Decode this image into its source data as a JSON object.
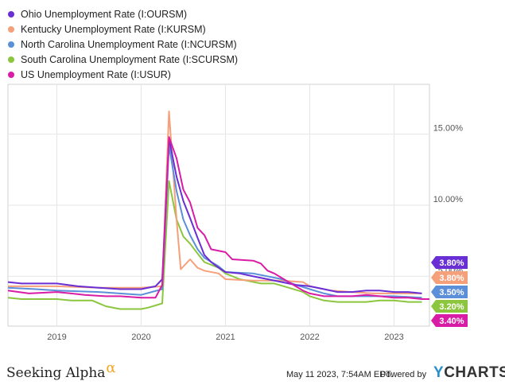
{
  "chart_data": {
    "type": "line",
    "y_axis": {
      "min": 1.5,
      "max": 18.5,
      "ticks": [
        5,
        10,
        15
      ],
      "tick_labels": [
        "5.00%",
        "10.00%",
        "15.00%"
      ],
      "side": "right"
    },
    "x_axis": {
      "start": 2018.42,
      "end": 2023.42,
      "ticks": [
        2019,
        2020,
        2021,
        2022,
        2023
      ],
      "tick_labels": [
        "2019",
        "2020",
        "2021",
        "2022",
        "2023"
      ]
    },
    "grid": true,
    "legend_position": "top-left",
    "series": [
      {
        "name": "Ohio Unemployment Rate (I:OURSM)",
        "color": "#6a2fd4",
        "end_label": "3.80%",
        "points": [
          [
            2018.42,
            4.6
          ],
          [
            2018.58,
            4.5
          ],
          [
            2018.75,
            4.5
          ],
          [
            2019.0,
            4.5
          ],
          [
            2019.25,
            4.3
          ],
          [
            2019.5,
            4.2
          ],
          [
            2019.75,
            4.1
          ],
          [
            2020.0,
            4.1
          ],
          [
            2020.17,
            4.3
          ],
          [
            2020.25,
            4.8
          ],
          [
            2020.33,
            14.7
          ],
          [
            2020.42,
            12.0
          ],
          [
            2020.5,
            10.3
          ],
          [
            2020.58,
            9.1
          ],
          [
            2020.67,
            7.7
          ],
          [
            2020.75,
            6.5
          ],
          [
            2020.83,
            6.0
          ],
          [
            2020.92,
            5.6
          ],
          [
            2021.0,
            5.3
          ],
          [
            2021.17,
            5.2
          ],
          [
            2021.33,
            5.0
          ],
          [
            2021.5,
            4.8
          ],
          [
            2021.67,
            4.6
          ],
          [
            2021.83,
            4.4
          ],
          [
            2022.0,
            4.3
          ],
          [
            2022.17,
            4.1
          ],
          [
            2022.33,
            3.9
          ],
          [
            2022.5,
            3.9
          ],
          [
            2022.67,
            4.0
          ],
          [
            2022.83,
            4.0
          ],
          [
            2023.0,
            3.9
          ],
          [
            2023.17,
            3.9
          ],
          [
            2023.33,
            3.8
          ]
        ]
      },
      {
        "name": "Kentucky Unemployment Rate (I:KURSM)",
        "color": "#f5a07a",
        "end_label": "3.80%",
        "points": [
          [
            2018.42,
            4.3
          ],
          [
            2018.75,
            4.3
          ],
          [
            2019.0,
            4.3
          ],
          [
            2019.5,
            4.2
          ],
          [
            2020.0,
            4.2
          ],
          [
            2020.25,
            4.3
          ],
          [
            2020.33,
            16.6
          ],
          [
            2020.42,
            9.0
          ],
          [
            2020.47,
            5.5
          ],
          [
            2020.58,
            6.2
          ],
          [
            2020.67,
            5.6
          ],
          [
            2020.75,
            5.4
          ],
          [
            2020.92,
            5.2
          ],
          [
            2021.0,
            4.8
          ],
          [
            2021.33,
            4.7
          ],
          [
            2021.67,
            4.7
          ],
          [
            2021.92,
            4.6
          ],
          [
            2022.0,
            4.3
          ],
          [
            2022.25,
            4.0
          ],
          [
            2022.5,
            3.9
          ],
          [
            2022.75,
            3.8
          ],
          [
            2023.0,
            3.8
          ],
          [
            2023.33,
            3.8
          ]
        ]
      },
      {
        "name": "North Carolina Unemployment Rate (I:NCURSM)",
        "color": "#5b8fd9",
        "end_label": "3.50%",
        "points": [
          [
            2018.42,
            4.2
          ],
          [
            2018.75,
            4.1
          ],
          [
            2019.0,
            4.0
          ],
          [
            2019.5,
            3.9
          ],
          [
            2020.0,
            3.7
          ],
          [
            2020.25,
            4.1
          ],
          [
            2020.33,
            14.2
          ],
          [
            2020.42,
            11.0
          ],
          [
            2020.5,
            9.0
          ],
          [
            2020.58,
            7.9
          ],
          [
            2020.67,
            6.9
          ],
          [
            2020.75,
            6.3
          ],
          [
            2020.92,
            5.7
          ],
          [
            2021.0,
            5.3
          ],
          [
            2021.33,
            5.2
          ],
          [
            2021.67,
            4.8
          ],
          [
            2021.83,
            4.4
          ],
          [
            2022.0,
            4.1
          ],
          [
            2022.17,
            3.8
          ],
          [
            2022.33,
            3.6
          ],
          [
            2022.5,
            3.6
          ],
          [
            2022.83,
            3.6
          ],
          [
            2023.0,
            3.6
          ],
          [
            2023.33,
            3.5
          ]
        ]
      },
      {
        "name": "South Carolina Unemployment Rate (I:SCURSM)",
        "color": "#8cc63f",
        "end_label": "3.20%",
        "points": [
          [
            2018.42,
            3.5
          ],
          [
            2018.58,
            3.4
          ],
          [
            2019.0,
            3.4
          ],
          [
            2019.17,
            3.3
          ],
          [
            2019.42,
            3.3
          ],
          [
            2019.58,
            2.9
          ],
          [
            2019.75,
            2.7
          ],
          [
            2020.0,
            2.7
          ],
          [
            2020.08,
            2.8
          ],
          [
            2020.25,
            3.1
          ],
          [
            2020.33,
            11.7
          ],
          [
            2020.42,
            9.0
          ],
          [
            2020.5,
            7.8
          ],
          [
            2020.58,
            7.3
          ],
          [
            2020.67,
            6.6
          ],
          [
            2020.75,
            6.0
          ],
          [
            2020.92,
            5.6
          ],
          [
            2021.0,
            5.2
          ],
          [
            2021.17,
            4.8
          ],
          [
            2021.42,
            4.5
          ],
          [
            2021.58,
            4.5
          ],
          [
            2021.75,
            4.2
          ],
          [
            2021.92,
            3.9
          ],
          [
            2022.0,
            3.6
          ],
          [
            2022.17,
            3.3
          ],
          [
            2022.33,
            3.2
          ],
          [
            2022.67,
            3.2
          ],
          [
            2022.83,
            3.3
          ],
          [
            2023.0,
            3.3
          ],
          [
            2023.17,
            3.2
          ],
          [
            2023.33,
            3.2
          ]
        ]
      },
      {
        "name": "US Unemployment Rate (I:USUR)",
        "color": "#d91ca6",
        "end_label": "3.40%",
        "points": [
          [
            2018.42,
            4.0
          ],
          [
            2018.67,
            3.8
          ],
          [
            2019.0,
            3.9
          ],
          [
            2019.17,
            3.8
          ],
          [
            2019.33,
            3.7
          ],
          [
            2019.58,
            3.6
          ],
          [
            2019.75,
            3.6
          ],
          [
            2020.0,
            3.5
          ],
          [
            2020.17,
            3.5
          ],
          [
            2020.25,
            4.4
          ],
          [
            2020.33,
            14.8
          ],
          [
            2020.42,
            13.3
          ],
          [
            2020.5,
            11.1
          ],
          [
            2020.58,
            10.2
          ],
          [
            2020.67,
            8.4
          ],
          [
            2020.75,
            7.9
          ],
          [
            2020.83,
            6.9
          ],
          [
            2021.0,
            6.7
          ],
          [
            2021.08,
            6.2
          ],
          [
            2021.33,
            6.1
          ],
          [
            2021.42,
            5.9
          ],
          [
            2021.5,
            5.4
          ],
          [
            2021.58,
            5.2
          ],
          [
            2021.75,
            4.6
          ],
          [
            2021.92,
            4.0
          ],
          [
            2022.0,
            3.8
          ],
          [
            2022.17,
            3.6
          ],
          [
            2022.5,
            3.6
          ],
          [
            2022.67,
            3.7
          ],
          [
            2022.83,
            3.6
          ],
          [
            2023.0,
            3.5
          ],
          [
            2023.17,
            3.5
          ],
          [
            2023.33,
            3.4
          ],
          [
            2023.42,
            3.4
          ]
        ]
      }
    ]
  },
  "footer": {
    "brand": "Seeking Alpha",
    "brand_symbol": "α",
    "timestamp": "May 11 2023, 7:54AM EDT.",
    "powered_by": "Powered by",
    "ycharts_y": "Y",
    "ycharts_rest": "CHARTS"
  }
}
